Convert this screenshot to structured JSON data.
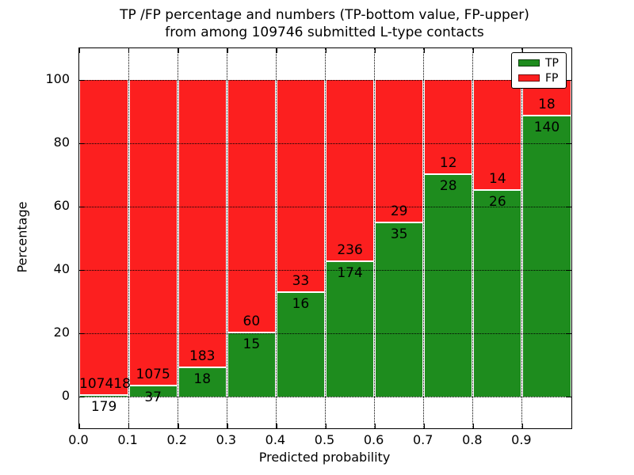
{
  "chart_data": {
    "type": "bar",
    "stacked": true,
    "units": "percent of bin, annotated with raw counts",
    "title": "TP /FP percentage and numbers (TP-bottom value, FP-upper)\nfrom among 109746 submitted L-type contacts",
    "total_submitted_contacts": 109746,
    "xlabel": "Predicted probability",
    "ylabel": "Percentage",
    "xlim": [
      0.0,
      1.0
    ],
    "ylim": [
      -10,
      110
    ],
    "bin_width": 0.1,
    "bin_starts": [
      0.0,
      0.1,
      0.2,
      0.3,
      0.4,
      0.5,
      0.6,
      0.7,
      0.8,
      0.9
    ],
    "xtick_labels": [
      "0.0",
      "0.1",
      "0.2",
      "0.3",
      "0.4",
      "0.5",
      "0.6",
      "0.7",
      "0.8",
      "0.9"
    ],
    "ytick_values": [
      0,
      20,
      40,
      60,
      80,
      100
    ],
    "grid": "dotted, both axes",
    "series": [
      {
        "name": "TP",
        "color": "#1e8c1e",
        "values": [
          179,
          37,
          18,
          15,
          16,
          174,
          35,
          28,
          26,
          140
        ]
      },
      {
        "name": "FP",
        "color": "#fc1f1f",
        "values": [
          107418,
          1075,
          183,
          60,
          33,
          236,
          29,
          12,
          14,
          18
        ]
      }
    ],
    "tp_percent": [
      0.17,
      3.33,
      8.96,
      20.0,
      32.65,
      42.44,
      54.69,
      70.0,
      65.0,
      88.61
    ],
    "legend": {
      "position": "upper right",
      "entries": [
        {
          "label": "TP",
          "color": "#1e8c1e"
        },
        {
          "label": "FP",
          "color": "#fc1f1f"
        }
      ]
    }
  }
}
